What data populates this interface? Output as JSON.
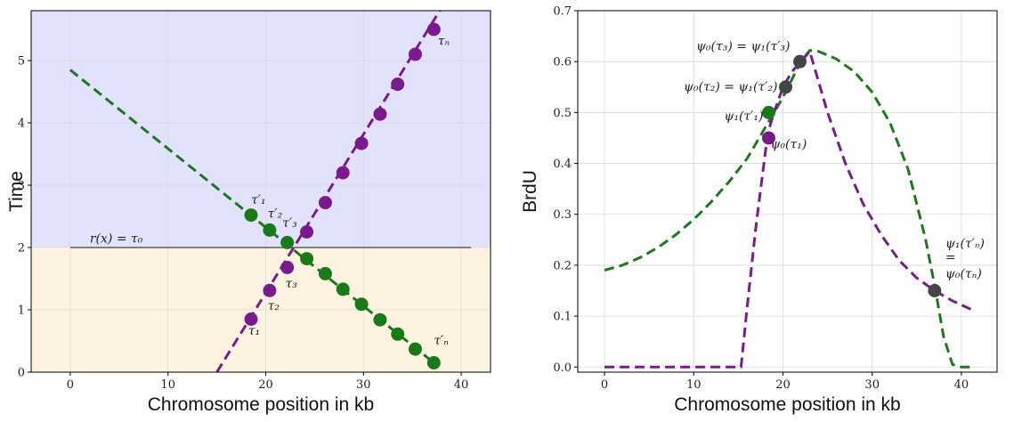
{
  "chart_data": [
    {
      "type": "scatter",
      "title": "",
      "xlabel": "Chromosome position in kb",
      "ylabel": "Time",
      "xlim": [
        -4,
        43
      ],
      "ylim": [
        0,
        5.8
      ],
      "xticks": [
        0,
        10,
        20,
        30,
        40
      ],
      "yticks": [
        0,
        1,
        2,
        3,
        4,
        5
      ],
      "grid": true,
      "bands": [
        {
          "from": 0,
          "to": 2,
          "color": "#fdf3e0"
        },
        {
          "from": 2,
          "to": 5.8,
          "color": "#e2e2fd"
        }
      ],
      "hline": {
        "y": 2,
        "x": [
          0,
          41
        ],
        "color": "#808080",
        "label": "r(x) = τ₀"
      },
      "series": [
        {
          "color": "#7b1a8c",
          "line": {
            "x": [
              15,
              38.2
            ],
            "y": [
              0,
              5.9
            ]
          },
          "points": {
            "x": [
              18.5,
              20.4,
              22.2,
              24.2,
              26.1,
              27.9,
              29.8,
              31.7,
              33.5,
              35.3,
              37.2
            ],
            "y": [
              0.85,
              1.31,
              1.68,
              2.25,
              2.72,
              3.2,
              3.67,
              4.14,
              4.62,
              5.1,
              5.5
            ]
          }
        },
        {
          "color": "#1a7a1a",
          "line": {
            "x": [
              0,
              37.2
            ],
            "y": [
              4.85,
              0.15
            ]
          },
          "points": {
            "x": [
              18.5,
              20.4,
              22.2,
              24.2,
              26.1,
              27.9,
              29.8,
              31.7,
              33.5,
              35.3,
              37.2
            ],
            "y": [
              2.52,
              2.28,
              2.08,
              1.82,
              1.58,
              1.33,
              1.09,
              0.84,
              0.61,
              0.37,
              0.15
            ]
          }
        }
      ],
      "annotations": [
        {
          "x": 18.2,
          "y": 0.6,
          "text": "τ₁",
          "color": "#7b1a8c"
        },
        {
          "x": 20.2,
          "y": 1.0,
          "text": "τ₂",
          "color": "#7b1a8c"
        },
        {
          "x": 22.0,
          "y": 1.36,
          "text": "τ₃",
          "color": "#7b1a8c"
        },
        {
          "x": 37.6,
          "y": 5.25,
          "text": "τₙ",
          "color": "#7b1a8c"
        },
        {
          "x": 18.5,
          "y": 2.7,
          "text": "τ′₁",
          "color": "#1a7a1a"
        },
        {
          "x": 20.2,
          "y": 2.48,
          "text": "τ′₂",
          "color": "#1a7a1a"
        },
        {
          "x": 21.7,
          "y": 2.33,
          "text": "τ′₃",
          "color": "#1a7a1a"
        },
        {
          "x": 37.2,
          "y": 0.44,
          "text": "τ′ₙ",
          "color": "#1a7a1a"
        },
        {
          "x": 2.0,
          "y": 2.08,
          "text": "r(x) = τ₀",
          "color": "#222222"
        }
      ]
    },
    {
      "type": "line",
      "title": "",
      "xlabel": "Chromosome position in kb",
      "ylabel": "BrdU",
      "xlim": [
        -3,
        44
      ],
      "ylim": [
        -0.01,
        0.7
      ],
      "xticks": [
        0,
        10,
        20,
        30,
        40
      ],
      "yticks": [
        0.0,
        0.1,
        0.2,
        0.3,
        0.4,
        0.5,
        0.6,
        0.7
      ],
      "grid": true,
      "series": [
        {
          "color": "#1a7a1a",
          "x": [
            0,
            2,
            4,
            6,
            8,
            10,
            12,
            14,
            16,
            18,
            20,
            22,
            23,
            24,
            26,
            28,
            30,
            32,
            34,
            35,
            36,
            37,
            38,
            39,
            40,
            41
          ],
          "y": [
            0.19,
            0.2,
            0.215,
            0.235,
            0.26,
            0.29,
            0.325,
            0.365,
            0.41,
            0.47,
            0.53,
            0.6,
            0.622,
            0.62,
            0.605,
            0.58,
            0.54,
            0.48,
            0.39,
            0.32,
            0.25,
            0.16,
            0.06,
            0.005,
            0.0,
            0.0
          ]
        },
        {
          "color": "#7b1a8c",
          "x": [
            0,
            5,
            10,
            15.3,
            16,
            17,
            18.3,
            19,
            20,
            21,
            22,
            23,
            25,
            27,
            29,
            31,
            33,
            35,
            37,
            39,
            41.5
          ],
          "y": [
            0.0,
            0.0,
            0.0,
            0.0,
            0.12,
            0.28,
            0.46,
            0.5,
            0.55,
            0.58,
            0.6,
            0.62,
            0.5,
            0.4,
            0.32,
            0.26,
            0.21,
            0.175,
            0.15,
            0.13,
            0.11
          ]
        }
      ],
      "points": [
        {
          "x": 18.4,
          "y": 0.5,
          "color": "#1a7a1a"
        },
        {
          "x": 18.4,
          "y": 0.45,
          "color": "#7b1a8c"
        },
        {
          "x": 20.3,
          "y": 0.55,
          "color": "#454545"
        },
        {
          "x": 21.9,
          "y": 0.6,
          "color": "#454545"
        },
        {
          "x": 37.0,
          "y": 0.15,
          "color": "#454545"
        }
      ],
      "annotations": [
        {
          "x": 18.6,
          "y": 0.43,
          "text": "ψ₀(τ₁)",
          "color": "#7b1a8c",
          "anchor": "start"
        },
        {
          "x": 17.8,
          "y": 0.485,
          "text": "ψ₁(τ′₁)",
          "color": "#1a7a1a",
          "anchor": "end"
        },
        {
          "x": 19.4,
          "y": 0.543,
          "text": "ψ₀(τ₂) = ψ₁(τ′₂)",
          "color": "#222222",
          "anchor": "end"
        },
        {
          "x": 20.8,
          "y": 0.622,
          "text": "ψ₀(τ₃) = ψ₁(τ′₃)",
          "color": "#222222",
          "anchor": "end"
        },
        {
          "x": 38.2,
          "y": 0.235,
          "text": "ψ₁(τ′ₙ)",
          "color": "#222222",
          "anchor": "start"
        },
        {
          "x": 38.2,
          "y": 0.208,
          "text": "=",
          "color": "#222222",
          "anchor": "start"
        },
        {
          "x": 38.2,
          "y": 0.175,
          "text": "ψ₀(τₙ)",
          "color": "#222222",
          "anchor": "start"
        }
      ]
    }
  ]
}
